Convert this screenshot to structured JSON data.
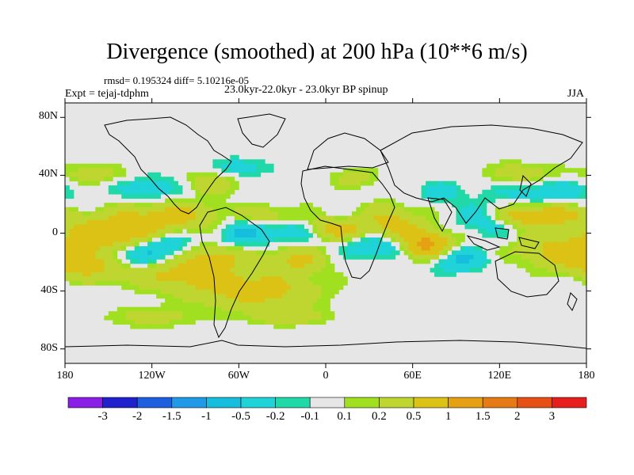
{
  "title": "Divergence (smoothed) at 200 hPa (10**6 m/s)",
  "stats_line": "rmsd= 0.195324 diff= 5.10216e-05",
  "experiment_line": "Expt = tejaj-tdphm",
  "period_line": "23.0kyr-22.0kyr - 23.0kyr BP spinup",
  "season": "JJA",
  "lat_ticks": [
    {
      "label": "80N",
      "value": 80
    },
    {
      "label": "40N",
      "value": 40
    },
    {
      "label": "0",
      "value": 0
    },
    {
      "label": "40S",
      "value": -40
    },
    {
      "label": "80S",
      "value": -80
    }
  ],
  "lon_ticks": [
    {
      "label": "180",
      "value": -180
    },
    {
      "label": "120W",
      "value": -120
    },
    {
      "label": "60W",
      "value": -60
    },
    {
      "label": "0",
      "value": 0
    },
    {
      "label": "60E",
      "value": 60
    },
    {
      "label": "120E",
      "value": 120
    },
    {
      "label": "180",
      "value": 180
    }
  ],
  "colorbar": {
    "colors": [
      "#8a1ee6",
      "#2020cc",
      "#1e5fe0",
      "#1e9ae6",
      "#14bedc",
      "#1fd3d8",
      "#20d8a8",
      "#e6e6e6",
      "#a0e020",
      "#bfd630",
      "#dcc214",
      "#e6a014",
      "#e67a14",
      "#e65014",
      "#e61e1e"
    ],
    "labels": [
      "-3",
      "-2",
      "-1.5",
      "-1",
      "-0.5",
      "-0.2",
      "-0.1",
      "0.1",
      "0.2",
      "0.5",
      "1",
      "1.5",
      "2",
      "3"
    ]
  },
  "chart_data": {
    "type": "heatmap",
    "title": "Divergence (smoothed) at 200 hPa (10**6 m/s)",
    "variable": "divergence",
    "units": "10**6 m/s",
    "x_range": [
      -180,
      180
    ],
    "y_range": [
      -90,
      90
    ],
    "contour_levels": [
      -3,
      -2,
      -1.5,
      -1,
      -0.5,
      -0.2,
      -0.1,
      0.1,
      0.2,
      0.5,
      1,
      1.5,
      2,
      3
    ],
    "features": [
      {
        "lon": 165,
        "lat": -12,
        "sx": 22,
        "sy": 8,
        "v": 0.7
      },
      {
        "lon": -165,
        "lat": -22,
        "sx": 20,
        "sy": 7,
        "v": 0.6
      },
      {
        "lon": -145,
        "lat": 0,
        "sx": 24,
        "sy": 8,
        "v": 0.8
      },
      {
        "lon": -132,
        "lat": -16,
        "sx": 14,
        "sy": 6,
        "v": -0.6
      },
      {
        "lon": -110,
        "lat": -8,
        "sx": 12,
        "sy": 6,
        "v": -0.55
      },
      {
        "lon": -105,
        "lat": 12,
        "sx": 26,
        "sy": 7,
        "v": 0.6
      },
      {
        "lon": -100,
        "lat": -28,
        "sx": 28,
        "sy": 8,
        "v": 0.55
      },
      {
        "lon": -75,
        "lat": -16,
        "sx": 16,
        "sy": 6,
        "v": 0.5
      },
      {
        "lon": -60,
        "lat": 2,
        "sx": 12,
        "sy": 8,
        "v": -0.5
      },
      {
        "lon": -48,
        "lat": -40,
        "sx": 30,
        "sy": 9,
        "v": 0.65
      },
      {
        "lon": -40,
        "lat": 10,
        "sx": 18,
        "sy": 6,
        "v": 0.5
      },
      {
        "lon": -28,
        "lat": 2,
        "sx": 18,
        "sy": 6,
        "v": -0.6
      },
      {
        "lon": -20,
        "lat": -18,
        "sx": 14,
        "sy": 7,
        "v": 0.55
      },
      {
        "lon": 5,
        "lat": 3,
        "sx": 14,
        "sy": 5,
        "v": 0.75
      },
      {
        "lon": 35,
        "lat": -10,
        "sx": 14,
        "sy": 5,
        "v": -0.55
      },
      {
        "lon": 45,
        "lat": 8,
        "sx": 14,
        "sy": 8,
        "v": 0.6
      },
      {
        "lon": 70,
        "lat": -8,
        "sx": 12,
        "sy": 7,
        "v": 1.2
      },
      {
        "lon": 90,
        "lat": -18,
        "sx": 14,
        "sy": 6,
        "v": -0.6
      },
      {
        "lon": 110,
        "lat": 10,
        "sx": 14,
        "sy": 7,
        "v": -0.5
      },
      {
        "lon": 145,
        "lat": 12,
        "sx": 24,
        "sy": 5,
        "v": 0.9
      },
      {
        "lon": 150,
        "lat": 30,
        "sx": 26,
        "sy": 6,
        "v": -0.4
      },
      {
        "lon": 135,
        "lat": 40,
        "sx": 18,
        "sy": 6,
        "v": 0.4
      },
      {
        "lon": -120,
        "lat": 32,
        "sx": 18,
        "sy": 6,
        "v": -0.4
      },
      {
        "lon": -80,
        "lat": 35,
        "sx": 16,
        "sy": 6,
        "v": 0.4
      },
      {
        "lon": -160,
        "lat": 40,
        "sx": 18,
        "sy": 5,
        "v": 0.35
      },
      {
        "lon": -60,
        "lat": 45,
        "sx": 14,
        "sy": 5,
        "v": -0.35
      },
      {
        "lon": 20,
        "lat": 38,
        "sx": 12,
        "sy": 5,
        "v": 0.3
      },
      {
        "lon": -25,
        "lat": -58,
        "sx": 18,
        "sy": 4,
        "v": 0.35
      },
      {
        "lon": -120,
        "lat": -58,
        "sx": 22,
        "sy": 5,
        "v": 0.3
      },
      {
        "lon": 80,
        "lat": 28,
        "sx": 10,
        "sy": 5,
        "v": -0.35
      }
    ]
  }
}
